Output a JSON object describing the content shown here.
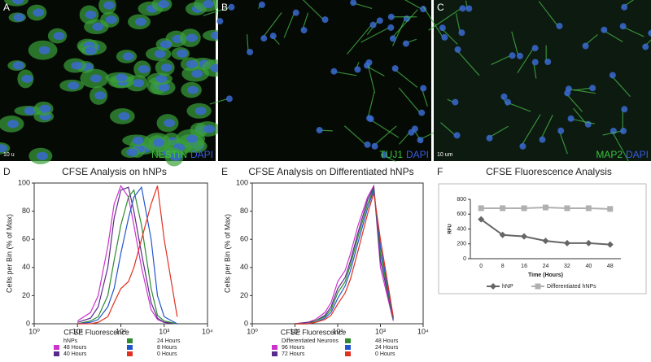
{
  "images": [
    {
      "letter": "A",
      "stain": "NESTIN",
      "dapi": "DAPI",
      "scale": "10 u"
    },
    {
      "letter": "B",
      "stain": "TUJ1",
      "dapi": "DAPI"
    },
    {
      "letter": "C",
      "stain": "MAP2",
      "dapi": "DAPI",
      "scale": "10 um"
    }
  ],
  "chart_data": [
    {
      "type": "line",
      "letter": "D",
      "title": "CFSE Analysis on hNPs",
      "xlabel": "CFSE Fluorescence",
      "ylabel": "Cells per Bin (% of Max)",
      "xscale": "log",
      "xlim": [
        1,
        10000
      ],
      "xticks": [
        {
          "value": 1,
          "label": "10⁰"
        },
        {
          "value": 10,
          "label": "10¹"
        },
        {
          "value": 100,
          "label": "10²"
        },
        {
          "value": 1000,
          "label": "10³"
        },
        {
          "value": 10000,
          "label": "10⁴"
        }
      ],
      "ylim": [
        0,
        100
      ],
      "yticks": [
        0,
        20,
        40,
        60,
        80,
        100
      ],
      "legend_title": "hNPs",
      "x": [
        10,
        20,
        30,
        50,
        70,
        100,
        150,
        200,
        300,
        500,
        700,
        1000,
        2000
      ],
      "series": [
        {
          "name": "48 Hours",
          "color": "#cc33cc",
          "values": [
            2,
            8,
            20,
            55,
            85,
            98,
            90,
            70,
            40,
            10,
            3,
            1,
            0
          ]
        },
        {
          "name": "40 Hours",
          "color": "#5a2a8a",
          "values": [
            1,
            4,
            12,
            40,
            75,
            95,
            97,
            80,
            50,
            15,
            4,
            1,
            0
          ]
        },
        {
          "name": "24 Hours",
          "color": "#2e8b2e",
          "values": [
            0,
            2,
            5,
            20,
            45,
            70,
            90,
            95,
            70,
            25,
            6,
            2,
            0
          ]
        },
        {
          "name": "8 Hours",
          "color": "#2255cc",
          "values": [
            0,
            1,
            3,
            12,
            25,
            50,
            75,
            90,
            97,
            60,
            20,
            5,
            0
          ]
        },
        {
          "name": "0 Hours",
          "color": "#e03020",
          "values": [
            0,
            0,
            1,
            5,
            15,
            25,
            30,
            40,
            60,
            85,
            98,
            60,
            5
          ]
        }
      ]
    },
    {
      "type": "line",
      "letter": "E",
      "title": "CFSE Analysis on Differentiated hNPs",
      "xlabel": "CFSE Fluorescence",
      "ylabel": "Cells per Bin (% of Max)",
      "xscale": "log",
      "xlim": [
        1,
        10000
      ],
      "xticks": [
        {
          "value": 1,
          "label": "10⁰"
        },
        {
          "value": 10,
          "label": "10¹"
        },
        {
          "value": 100,
          "label": "10²"
        },
        {
          "value": 1000,
          "label": "10³"
        },
        {
          "value": 10000,
          "label": "10⁴"
        }
      ],
      "ylim": [
        0,
        100
      ],
      "yticks": [
        0,
        20,
        40,
        60,
        80,
        100
      ],
      "legend_title": "Differentiated Neurons",
      "x": [
        10,
        20,
        30,
        50,
        70,
        100,
        150,
        200,
        300,
        500,
        700,
        1000,
        2000
      ],
      "series": [
        {
          "name": "96 Hours",
          "color": "#cc33cc",
          "values": [
            0,
            1,
            3,
            8,
            15,
            30,
            38,
            50,
            70,
            90,
            98,
            40,
            2
          ]
        },
        {
          "name": "72 Hours",
          "color": "#5a2a8a",
          "values": [
            0,
            1,
            2,
            6,
            12,
            25,
            33,
            45,
            65,
            88,
            97,
            45,
            3
          ]
        },
        {
          "name": "48 Hours",
          "color": "#2e8b2e",
          "values": [
            0,
            0,
            2,
            5,
            10,
            22,
            30,
            42,
            62,
            85,
            96,
            50,
            3
          ]
        },
        {
          "name": "24 Hours",
          "color": "#2255cc",
          "values": [
            0,
            0,
            1,
            4,
            8,
            18,
            27,
            38,
            58,
            82,
            95,
            55,
            4
          ]
        },
        {
          "name": "0 Hours",
          "color": "#e03020",
          "values": [
            0,
            0,
            1,
            3,
            6,
            14,
            22,
            32,
            52,
            78,
            93,
            60,
            5
          ]
        }
      ]
    },
    {
      "type": "line",
      "letter": "F",
      "title": "CFSE Fluorescence Analysis",
      "xlabel": "Time (Hours)",
      "ylabel": "RFU",
      "categories": [
        "0",
        "8",
        "16",
        "24",
        "32",
        "40",
        "48"
      ],
      "ylim": [
        0,
        800
      ],
      "yticks": [
        0,
        200,
        400,
        600,
        800
      ],
      "series": [
        {
          "name": "hNP",
          "color": "#666666",
          "marker": "diamond",
          "values": [
            530,
            320,
            300,
            240,
            210,
            210,
            190
          ]
        },
        {
          "name": "Differentiated hNPs",
          "color": "#b0b0b0",
          "marker": "square",
          "values": [
            680,
            680,
            680,
            690,
            680,
            680,
            670
          ]
        }
      ]
    }
  ]
}
